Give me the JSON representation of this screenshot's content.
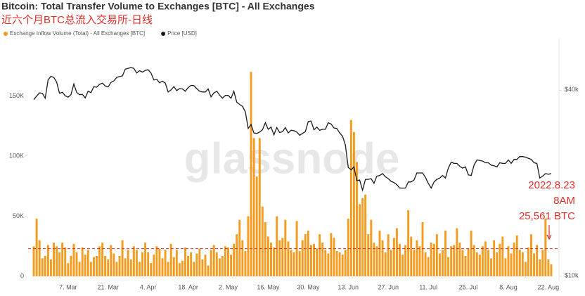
{
  "chart_data": {
    "type": "bar",
    "title": "Bitcoin: Total Transfer Volume to Exchanges [BTC] - All Exchanges",
    "subtitle": "近六个月BTC总流入交易所-日线",
    "watermark": "glassnode",
    "annotations": [
      "2022.8.23",
      "8AM",
      "25,561 BTC"
    ],
    "reference_line": {
      "value": 23000,
      "color": "#e0302a"
    },
    "categories": [
      null,
      null,
      null,
      null,
      null,
      null,
      null,
      null,
      null,
      null,
      null,
      null,
      "7. Mar",
      null,
      null,
      null,
      null,
      null,
      null,
      null,
      null,
      null,
      null,
      null,
      null,
      null,
      "21. Mar",
      null,
      null,
      null,
      null,
      null,
      null,
      null,
      null,
      null,
      null,
      null,
      null,
      null,
      "4. Apr",
      null,
      null,
      null,
      null,
      null,
      null,
      null,
      null,
      null,
      null,
      null,
      null,
      null,
      "18. Apr",
      null,
      null,
      null,
      null,
      null,
      null,
      null,
      null,
      null,
      null,
      null,
      null,
      null,
      "2. May",
      null,
      null,
      null,
      null,
      null,
      null,
      null,
      null,
      null,
      null,
      null,
      null,
      null,
      "16. May",
      null,
      null,
      null,
      null,
      null,
      null,
      null,
      null,
      null,
      null,
      null,
      null,
      null,
      "30. May",
      null,
      null,
      null,
      null,
      null,
      null,
      null,
      null,
      null,
      null,
      null,
      null,
      null,
      "13. Jun",
      null,
      null,
      null,
      null,
      null,
      null,
      null,
      null,
      null,
      null,
      null,
      null,
      null,
      "27. Jun",
      null,
      null,
      null,
      null,
      null,
      null,
      null,
      null,
      null,
      null,
      null,
      null,
      null,
      "11. Jul",
      null,
      null,
      null,
      null,
      null,
      null,
      null,
      null,
      null,
      null,
      null,
      null,
      null,
      "25. Jul",
      null,
      null,
      null,
      null,
      null,
      null,
      null,
      null,
      null,
      null,
      null,
      null,
      null,
      "8. Aug",
      null,
      null,
      null,
      null,
      null,
      null,
      null,
      null,
      null,
      null,
      null,
      null,
      null,
      "22. Aug",
      null
    ],
    "series": [
      {
        "name": "Exchange Inflow Volume (Total) - All Exchanges [BTC]",
        "type": "bar",
        "color": "#f39c1f",
        "values": [
          25000,
          48000,
          30000,
          15000,
          17000,
          26000,
          14000,
          28000,
          25000,
          20000,
          28000,
          24000,
          11000,
          17000,
          27000,
          20000,
          12000,
          24000,
          18000,
          22000,
          12000,
          16000,
          17000,
          25000,
          28000,
          17000,
          14000,
          26000,
          19000,
          12000,
          17000,
          30000,
          15000,
          22000,
          14000,
          25000,
          22000,
          12000,
          20000,
          28000,
          20000,
          11000,
          18000,
          25000,
          23000,
          15000,
          22000,
          12000,
          27000,
          16000,
          22000,
          11000,
          13000,
          24000,
          17000,
          20000,
          12000,
          19000,
          23000,
          14000,
          18000,
          9000,
          22000,
          26000,
          20000,
          15000,
          17000,
          25000,
          24000,
          18000,
          27000,
          35000,
          47000,
          30000,
          21000,
          50000,
          170000,
          115000,
          83000,
          115000,
          58000,
          45000,
          33000,
          28000,
          24000,
          50000,
          30000,
          32000,
          47000,
          29000,
          22000,
          20000,
          46000,
          21000,
          30000,
          35000,
          38000,
          26000,
          27000,
          23000,
          35000,
          28000,
          22000,
          19000,
          36000,
          32000,
          21000,
          20000,
          18000,
          22000,
          48000,
          130000,
          120000,
          95000,
          60000,
          65000,
          68000,
          35000,
          47000,
          28000,
          25000,
          38000,
          30000,
          20000,
          35000,
          22000,
          32000,
          40000,
          27000,
          18000,
          26000,
          55000,
          33000,
          22000,
          30000,
          25000,
          45000,
          20000,
          16000,
          28000,
          27000,
          35000,
          19000,
          22000,
          38000,
          16000,
          25000,
          26000,
          40000,
          28000,
          22000,
          17000,
          23000,
          38000,
          26000,
          20000,
          18000,
          25000,
          29000,
          22000,
          15000,
          30000,
          20000,
          27000,
          33000,
          15000,
          25000,
          19000,
          28000,
          34000,
          22000,
          20000,
          12000,
          24000,
          35000,
          19000,
          26000,
          14000,
          22000,
          48000,
          14000,
          10000
        ]
      },
      {
        "name": "Price [USD]",
        "type": "line",
        "axis": "y2",
        "color": "#1a1a1a",
        "values": [
          37300,
          38300,
          39200,
          39100,
          37700,
          43200,
          44400,
          44000,
          42500,
          39100,
          39400,
          38400,
          38000,
          38700,
          41900,
          39400,
          38700,
          38800,
          37800,
          39700,
          39300,
          41100,
          40900,
          41800,
          42200,
          41300,
          41000,
          42400,
          42900,
          44000,
          44300,
          44500,
          46800,
          47100,
          47400,
          47100,
          45500,
          46300,
          45800,
          46400,
          46600,
          45500,
          43200,
          43400,
          42300,
          42800,
          42200,
          39500,
          40100,
          41100,
          39900,
          40500,
          40400,
          39700,
          40800,
          41500,
          41400,
          40500,
          39700,
          39500,
          39500,
          40400,
          38100,
          39200,
          39700,
          38600,
          37700,
          38500,
          38500,
          37700,
          39700,
          36600,
          36000,
          35500,
          34100,
          30100,
          31000,
          29100,
          29000,
          29300,
          29800,
          31400,
          29900,
          30400,
          28700,
          30300,
          29200,
          29400,
          30300,
          29100,
          29700,
          29600,
          29300,
          28600,
          29000,
          29400,
          31700,
          31800,
          29800,
          30400,
          29700,
          29900,
          29900,
          31400,
          31100,
          30200,
          30100,
          29100,
          28400,
          26600,
          22500,
          22100,
          22600,
          20400,
          20500,
          19000,
          20600,
          20600,
          20700,
          20000,
          21100,
          21200,
          21500,
          21000,
          20700,
          20300,
          20100,
          19800,
          19300,
          19300,
          19300,
          20200,
          20200,
          20500,
          21600,
          21600,
          21600,
          20900,
          20000,
          19300,
          20200,
          20600,
          20800,
          21200,
          20800,
          22400,
          23400,
          23200,
          23200,
          22700,
          22400,
          22600,
          21300,
          21200,
          22900,
          23800,
          23700,
          23600,
          23300,
          23300,
          22900,
          22800,
          22600,
          23300,
          23200,
          23200,
          23800,
          23200,
          23900,
          23900,
          24400,
          24400,
          24300,
          24100,
          23900,
          23300,
          23200,
          20800,
          21100,
          21500,
          21400,
          21500
        ]
      }
    ],
    "ylim": [
      0,
      200000
    ],
    "yticks": [
      0,
      {
        "value": 50000,
        "label": "50K"
      },
      {
        "value": 100000,
        "label": "100K"
      },
      {
        "value": 150000,
        "label": "150K"
      }
    ],
    "y2lim": [
      10000,
      60000
    ],
    "y2log": true,
    "y2ticks": [
      {
        "value": 10000,
        "label": "$10k"
      },
      {
        "value": 40000,
        "label": "$40k"
      }
    ],
    "grid": false
  }
}
